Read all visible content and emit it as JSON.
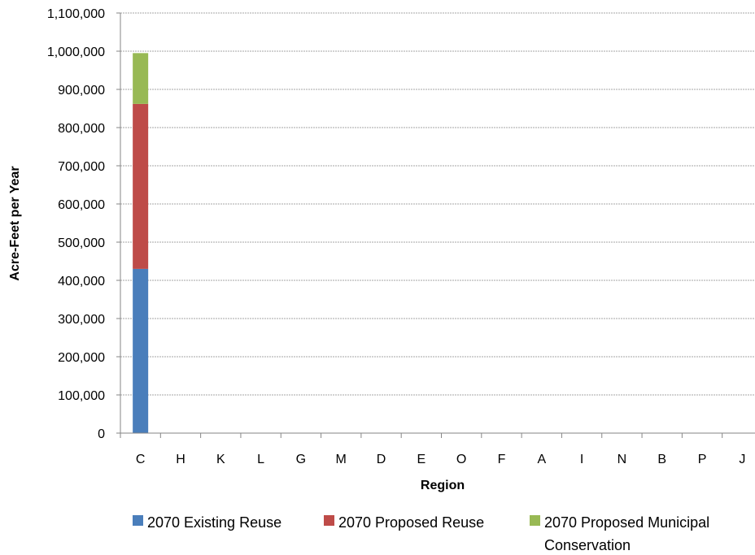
{
  "chart_data": {
    "type": "bar",
    "stacked": true,
    "title": "",
    "xlabel": "Region",
    "ylabel": "Acre-Feet per Year",
    "ylim": [
      0,
      1100000
    ],
    "y_ticks": [
      0,
      100000,
      200000,
      300000,
      400000,
      500000,
      600000,
      700000,
      800000,
      900000,
      1000000,
      1100000
    ],
    "y_tick_labels": [
      "0",
      "100,000",
      "200,000",
      "300,000",
      "400,000",
      "500,000",
      "600,000",
      "700,000",
      "800,000",
      "900,000",
      "1,000,000",
      "1,100,000"
    ],
    "grid": true,
    "legend_position": "bottom",
    "categories": [
      "C",
      "H",
      "K",
      "L",
      "G",
      "M",
      "D",
      "E",
      "O",
      "F",
      "A",
      "I",
      "N",
      "B",
      "P",
      "J"
    ],
    "series": [
      {
        "name": "2070 Existing Reuse",
        "color": "#4a7ebb",
        "values": [
          430000,
          0,
          0,
          0,
          0,
          0,
          0,
          0,
          0,
          0,
          0,
          0,
          0,
          0,
          0,
          0
        ]
      },
      {
        "name": "2070 Proposed Reuse",
        "color": "#be4b48",
        "values": [
          432000,
          0,
          0,
          0,
          0,
          0,
          0,
          0,
          0,
          0,
          0,
          0,
          0,
          0,
          0,
          0
        ]
      },
      {
        "name": "2070 Proposed Municipal Conservation",
        "legend_lines": [
          "2070 Proposed Municipal",
          "Conservation"
        ],
        "color": "#98b954",
        "values": [
          133000,
          0,
          0,
          0,
          0,
          0,
          0,
          0,
          0,
          0,
          0,
          0,
          0,
          0,
          0,
          0
        ]
      }
    ]
  }
}
